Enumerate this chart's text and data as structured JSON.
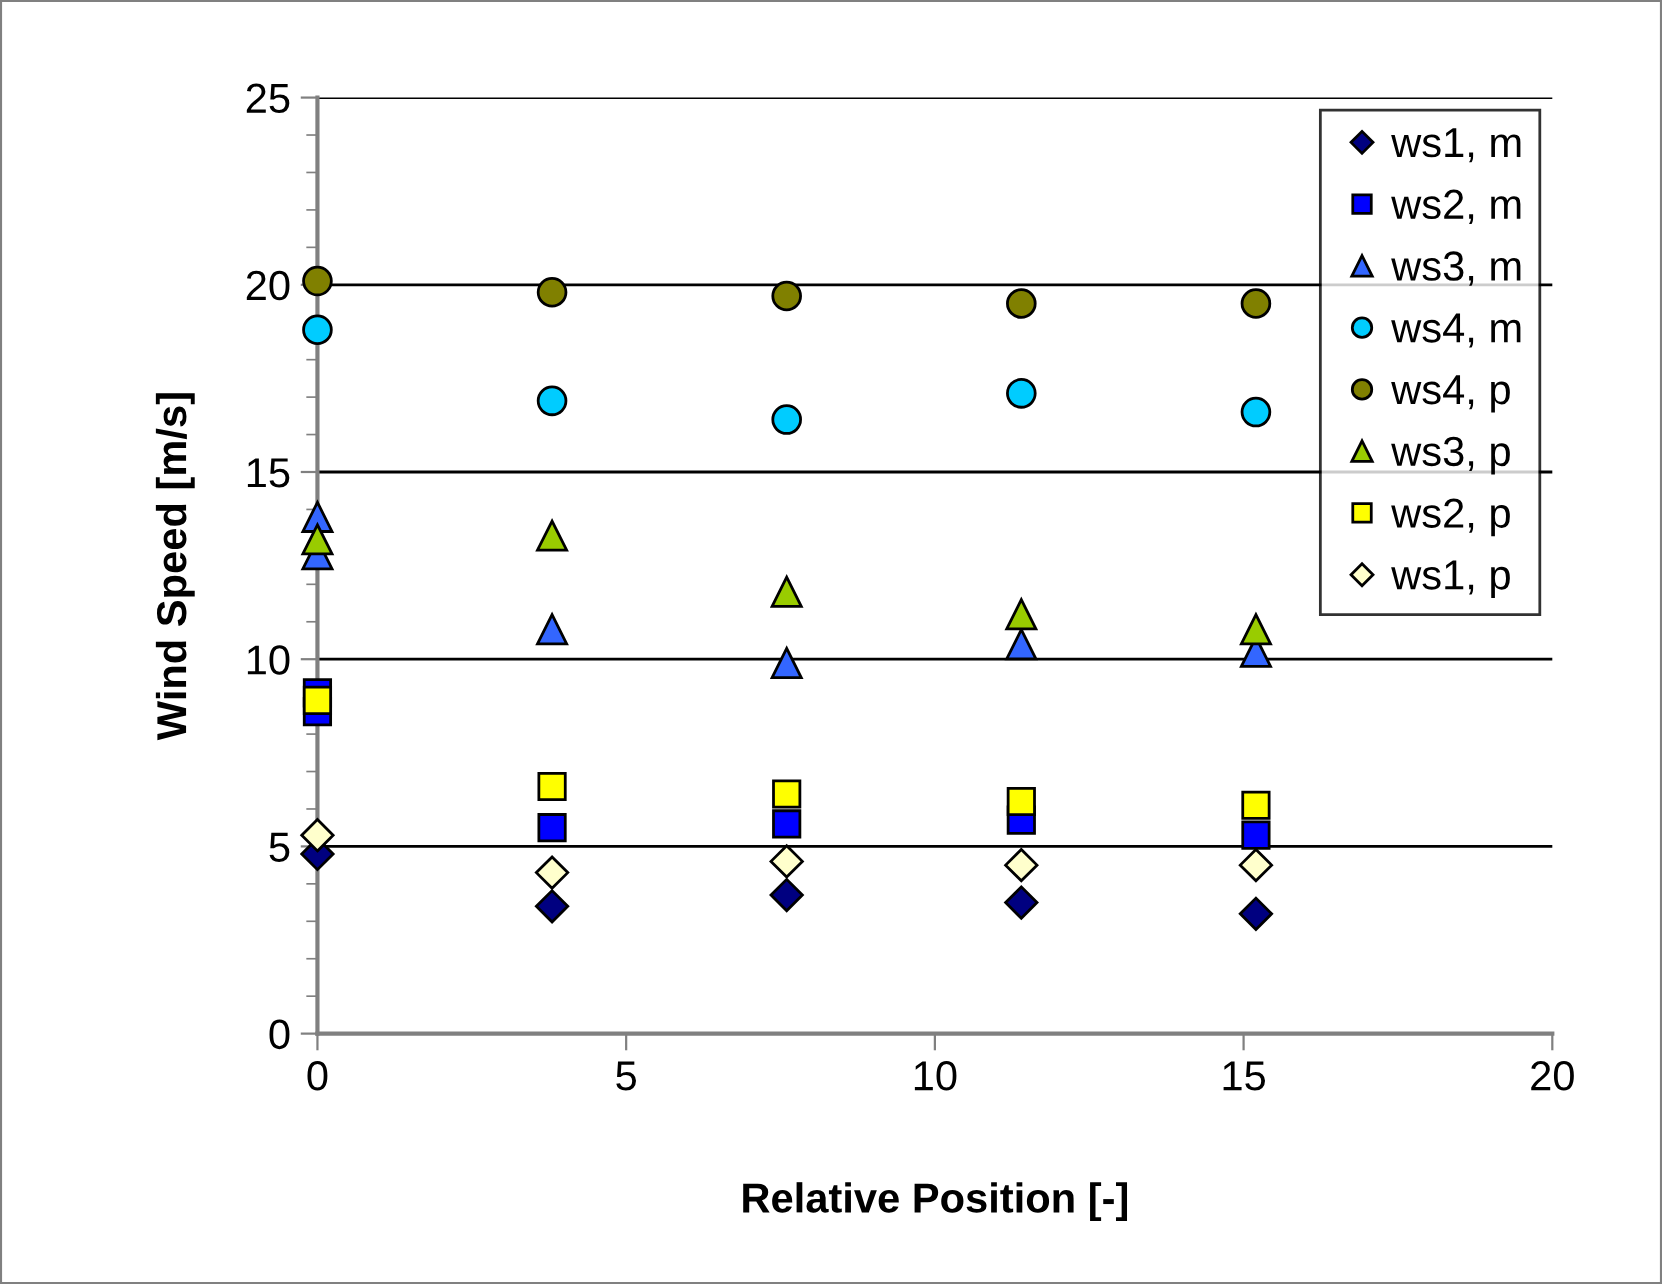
{
  "chart_data": {
    "type": "scatter",
    "xlabel": "Relative Position [-]",
    "ylabel": "Wind Speed [m/s]",
    "xlim": [
      0,
      20
    ],
    "xticks": [
      0,
      5,
      10,
      15,
      20
    ],
    "ylim": [
      0,
      25
    ],
    "yticks": [
      0,
      5,
      10,
      15,
      20,
      25
    ],
    "grid": "y",
    "legend": "top right",
    "series": [
      {
        "name": "ws1, m",
        "color": "#000080",
        "marker": "diamond",
        "x": [
          0,
          3.8,
          7.6,
          11.4,
          15.2
        ],
        "values": [
          4.8,
          3.4,
          3.7,
          3.5,
          3.2
        ]
      },
      {
        "name": "ws2, m",
        "color": "#0000ff",
        "marker": "square",
        "x": [
          0,
          0,
          3.8,
          7.6,
          11.4,
          15.2
        ],
        "values": [
          9.1,
          8.6,
          5.5,
          5.6,
          5.7,
          5.3
        ]
      },
      {
        "name": "ws3, m",
        "color": "#3366ff",
        "marker": "triangle",
        "x": [
          0,
          0,
          3.8,
          7.6,
          11.4,
          15.2
        ],
        "values": [
          13.8,
          12.8,
          10.8,
          9.9,
          10.4,
          10.2
        ]
      },
      {
        "name": "ws4, m",
        "color": "#00ccff",
        "marker": "circle",
        "x": [
          0,
          3.8,
          7.6,
          11.4,
          15.2
        ],
        "values": [
          18.8,
          16.9,
          16.4,
          17.1,
          16.6
        ]
      },
      {
        "name": "ws4, p",
        "color": "#808000",
        "marker": "circle",
        "x": [
          0,
          3.8,
          7.6,
          11.4,
          15.2
        ],
        "values": [
          20.1,
          19.8,
          19.7,
          19.5,
          19.5
        ]
      },
      {
        "name": "ws3, p",
        "color": "#99cc00",
        "marker": "triangle",
        "x": [
          0,
          3.8,
          7.6,
          11.4,
          15.2
        ],
        "values": [
          13.2,
          13.3,
          11.8,
          11.2,
          10.8
        ]
      },
      {
        "name": "ws2, p",
        "color": "#ffff00",
        "marker": "square",
        "x": [
          0,
          3.8,
          7.6,
          11.4,
          15.2
        ],
        "values": [
          8.9,
          6.6,
          6.4,
          6.2,
          6.1
        ]
      },
      {
        "name": "ws1, p",
        "color": "#ffffcc",
        "marker": "diamond",
        "x": [
          0,
          3.8,
          7.6,
          11.4,
          15.2
        ],
        "values": [
          5.3,
          4.3,
          4.6,
          4.5,
          4.5
        ]
      }
    ]
  }
}
